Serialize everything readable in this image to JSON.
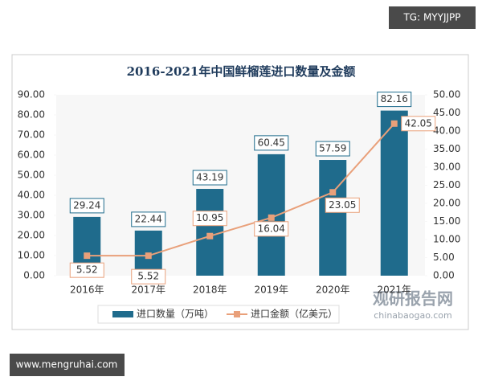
{
  "chart_data": {
    "type": "bar-line",
    "title": "2016-2021年中国鲜榴莲进口数量及金额",
    "categories": [
      "2016年",
      "2017年",
      "2018年",
      "2019年",
      "2020年",
      "2021年"
    ],
    "series": [
      {
        "name": "进口数量（万吨）",
        "type": "bar",
        "color": "#1f6b8c",
        "values": [
          29.24,
          22.44,
          43.19,
          60.45,
          57.59,
          82.16
        ]
      },
      {
        "name": "进口金额（亿美元）",
        "type": "line",
        "axis": "y2",
        "color": "#e9a07a",
        "values": [
          5.52,
          5.52,
          10.95,
          16.04,
          23.05,
          42.05
        ]
      }
    ],
    "ylim": [
      0,
      90
    ],
    "yticks": [
      {
        "value": 0,
        "label": "0.00"
      },
      {
        "value": 10,
        "label": "10.00"
      },
      {
        "value": 20,
        "label": "20.00"
      },
      {
        "value": 30,
        "label": "30.00"
      },
      {
        "value": 40,
        "label": "40.00"
      },
      {
        "value": 50,
        "label": "50.00"
      },
      {
        "value": 60,
        "label": "60.00"
      },
      {
        "value": 70,
        "label": "70.00"
      },
      {
        "value": 80,
        "label": "80.00"
      },
      {
        "value": 90,
        "label": "90.00"
      }
    ],
    "y2lim": [
      0,
      50
    ],
    "y2ticks": [
      {
        "value": 0,
        "label": "0.00"
      },
      {
        "value": 5,
        "label": "5.00"
      },
      {
        "value": 10,
        "label": "10.00"
      },
      {
        "value": 15,
        "label": "15.00"
      },
      {
        "value": 20,
        "label": "20.00"
      },
      {
        "value": 25,
        "label": "25.00"
      },
      {
        "value": 30,
        "label": "30.00"
      },
      {
        "value": 35,
        "label": "35.00"
      },
      {
        "value": 40,
        "label": "40.00"
      },
      {
        "value": 45,
        "label": "45.00"
      },
      {
        "value": 50,
        "label": "50.00"
      }
    ],
    "legend": "bottom"
  },
  "watermarks": {
    "top_right": "TG: MYYJJPP",
    "bottom_left": "www.mengruhai.com",
    "brand": "观研报告网",
    "brand_url": "chinabaogao.com"
  }
}
